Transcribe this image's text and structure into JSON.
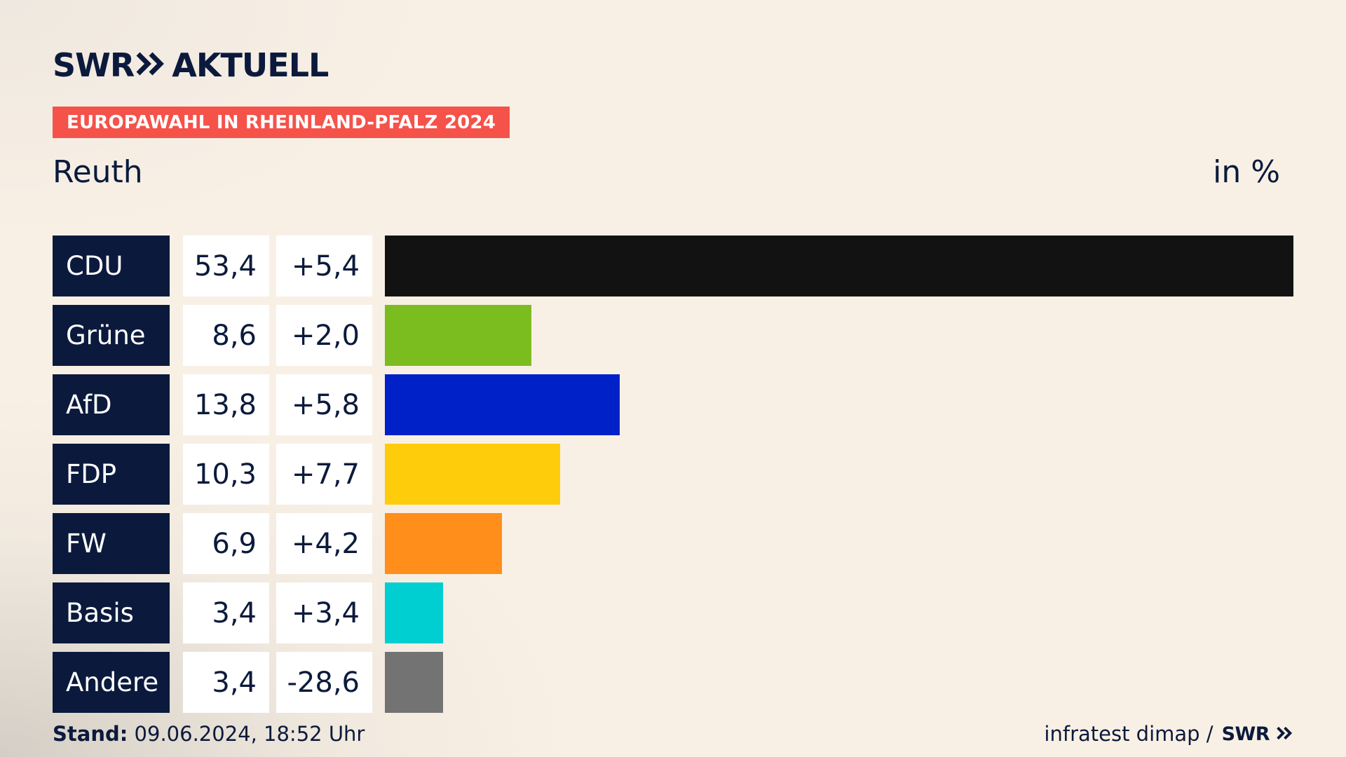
{
  "header": {
    "logo_left": "SWR",
    "logo_right": "AKTUELL",
    "badge": "EUROPAWAHL IN RHEINLAND-PFALZ 2024",
    "region": "Reuth",
    "unit": "in %"
  },
  "footer": {
    "stand_label": "Stand:",
    "stand_value": "09.06.2024, 18:52 Uhr",
    "source": "infratest dimap /",
    "source_logo": "SWR"
  },
  "chart_data": {
    "type": "bar",
    "orientation": "horizontal",
    "categories": [
      "CDU",
      "Grüne",
      "AfD",
      "FDP",
      "FW",
      "Basis",
      "Andere"
    ],
    "values": [
      53.4,
      8.6,
      13.8,
      10.3,
      6.9,
      3.4,
      3.4
    ],
    "values_label": [
      "53,4",
      "8,6",
      "13,8",
      "10,3",
      "6,9",
      "3,4",
      "3,4"
    ],
    "diff_label": [
      "+5,4",
      "+2,0",
      "+5,8",
      "+7,7",
      "+4,2",
      "+3,4",
      "-28,6"
    ],
    "colors": [
      "#121212",
      "#7bbd1f",
      "#0021c8",
      "#ffcc0b",
      "#ff8e1b",
      "#00cfd1",
      "#737373"
    ],
    "xlim": [
      0,
      53.4
    ]
  }
}
